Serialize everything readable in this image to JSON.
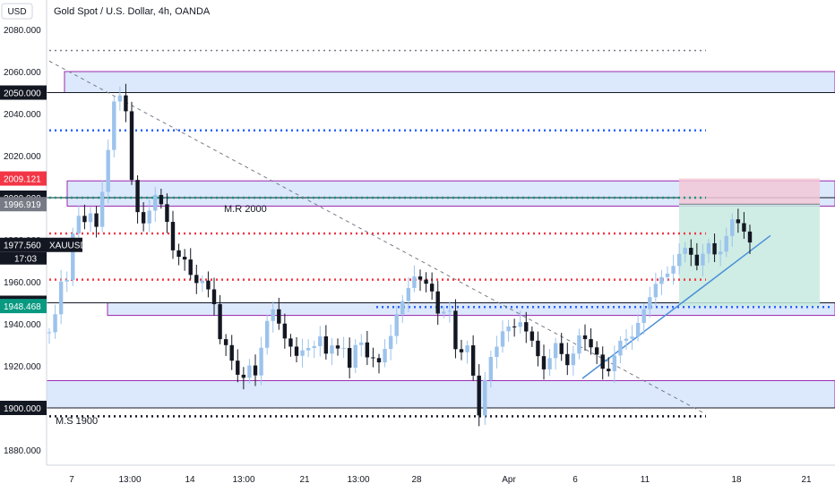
{
  "header": {
    "currency": "USD",
    "title": "Gold Spot / U.S. Dollar, 4h, OANDA"
  },
  "colors": {
    "up": "#9cc3ec",
    "down": "#131722",
    "zone_fill": "#dce8fb",
    "zone_border": "#9c27b0",
    "blue_dotted": "#2962ff",
    "red_dotted": "#f23645",
    "green_dotted": "#089981",
    "black_dotted": "#131722",
    "gray_dotted": "#787b86",
    "trend": "#4a90d9",
    "risk_fill": "#f3c8d6",
    "reward_fill": "#c7eadf"
  },
  "chart_data": {
    "type": "candlestick",
    "symbol": "XAUUSD",
    "interval": "4h",
    "ylim": [
      1870,
      2090
    ],
    "y_ticks": [
      "2080.000",
      "2060.000",
      "2040.000",
      "2020.000",
      "2000.000",
      "1980.000",
      "1960.000",
      "1940.000",
      "1920.000",
      "1900.000",
      "1880.000"
    ],
    "x_labels": [
      "7",
      "13:00",
      "14",
      "13:00",
      "21",
      "13:00",
      "28",
      "Apr",
      "6",
      "11",
      "18",
      "21"
    ],
    "price_tags": [
      {
        "label": "2050.000",
        "value": 2050,
        "style": "black"
      },
      {
        "label": "2009.121",
        "value": 2009.121,
        "style": "red"
      },
      {
        "label": "2000.000",
        "value": 2000,
        "style": "black"
      },
      {
        "label": "1996.919",
        "value": 1996.919,
        "style": "gray"
      },
      {
        "label": "1977.560",
        "value": 1977.56,
        "style": "black"
      },
      {
        "label": "1950.000",
        "value": 1950,
        "style": "black"
      },
      {
        "label": "1948.468",
        "value": 1948.468,
        "style": "green"
      },
      {
        "label": "1900.000",
        "value": 1900,
        "style": "black"
      }
    ],
    "symbol_tag": {
      "symbol": "XAUUSD",
      "countdown": "17:03"
    },
    "zones": [
      {
        "name": "zone-2050",
        "low": 2050,
        "high": 2060
      },
      {
        "name": "zone-2000",
        "low": 1996,
        "high": 2008
      },
      {
        "name": "zone-1950",
        "low": 1944,
        "high": 1950
      },
      {
        "name": "zone-1900",
        "low": 1900,
        "high": 1913
      }
    ],
    "levels": [
      {
        "name": "gray-2070",
        "value": 2070,
        "style": "gray_dotted"
      },
      {
        "name": "blue-2032",
        "value": 2032,
        "style": "blue_dotted"
      },
      {
        "name": "green-2000",
        "value": 2000,
        "style": "green_dotted"
      },
      {
        "name": "red-1983",
        "value": 1983,
        "style": "red_dotted"
      },
      {
        "name": "red-1961",
        "value": 1961,
        "style": "red_dotted"
      },
      {
        "name": "blue-1948",
        "value": 1948,
        "style": "blue_dotted"
      },
      {
        "name": "black-1896",
        "value": 1896,
        "style": "black_dotted"
      }
    ],
    "annotations": [
      {
        "text": "M.R 2000",
        "value": 1995
      },
      {
        "text": "M.S 1900",
        "value": 1894
      }
    ],
    "close": 1977.56,
    "position": {
      "entry": 1996.919,
      "stop": 2009.121,
      "target": 1948.468
    }
  }
}
